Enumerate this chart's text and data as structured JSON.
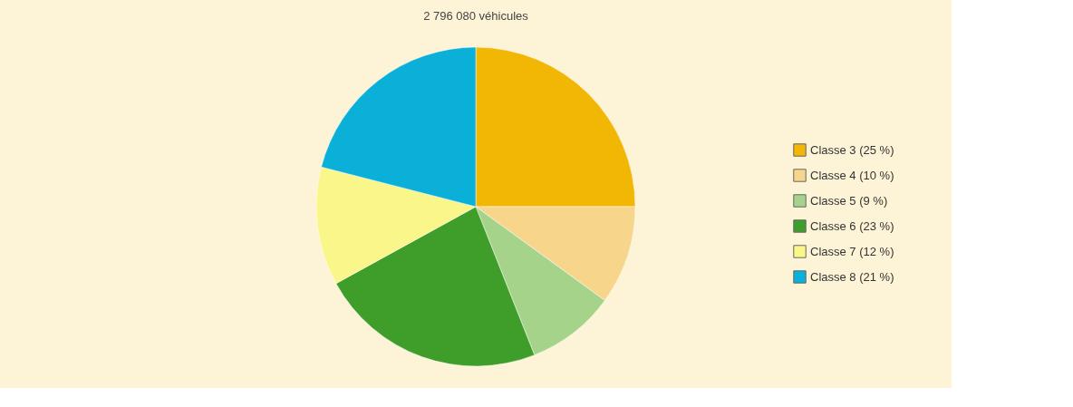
{
  "chart_data": {
    "type": "pie",
    "title": "2 796 080 véhicules",
    "categories": [
      "Classe 3 (25 %)",
      "Classe 4 (10 %)",
      "Classe 5 (9 %)",
      "Classe 6 (23 %)",
      "Classe 7 (12 %)",
      "Classe 8 (21 %)"
    ],
    "values": [
      25,
      10,
      9,
      23,
      12,
      21
    ],
    "colors": [
      "#f2b705",
      "#f7d58a",
      "#a6d38a",
      "#3f9e2a",
      "#fbf68a",
      "#0ab0d8"
    ],
    "legend": "right"
  }
}
